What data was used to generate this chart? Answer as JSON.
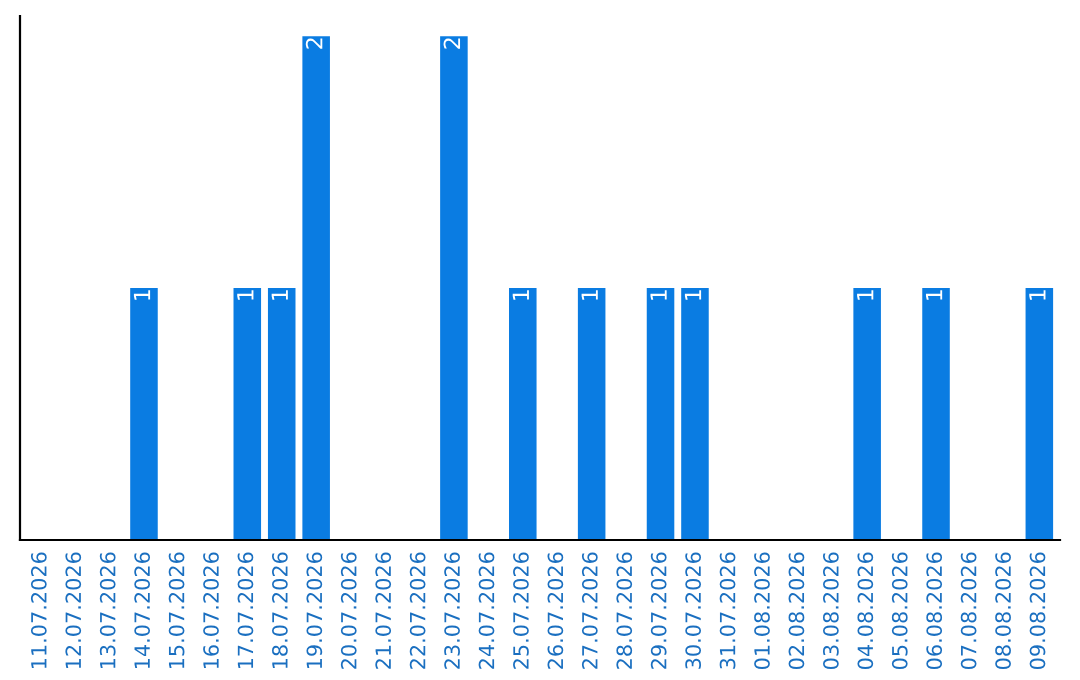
{
  "chart_data": {
    "type": "bar",
    "categories": [
      "11.07.2026",
      "12.07.2026",
      "13.07.2026",
      "14.07.2026",
      "15.07.2026",
      "16.07.2026",
      "17.07.2026",
      "18.07.2026",
      "19.07.2026",
      "20.07.2026",
      "21.07.2026",
      "22.07.2026",
      "23.07.2026",
      "24.07.2026",
      "25.07.2026",
      "26.07.2026",
      "27.07.2026",
      "28.07.2026",
      "29.07.2026",
      "30.07.2026",
      "31.07.2026",
      "01.08.2026",
      "02.08.2026",
      "03.08.2026",
      "04.08.2026",
      "05.08.2026",
      "06.08.2026",
      "07.08.2026",
      "08.08.2026",
      "09.08.2026"
    ],
    "values": [
      0,
      0,
      0,
      1,
      0,
      0,
      1,
      1,
      2,
      0,
      0,
      0,
      2,
      0,
      1,
      0,
      1,
      0,
      1,
      1,
      0,
      0,
      0,
      0,
      1,
      0,
      1,
      0,
      0,
      1
    ],
    "value_labels": [
      null,
      null,
      null,
      "1",
      null,
      null,
      "1",
      "1",
      "2",
      null,
      null,
      null,
      "2",
      null,
      "1",
      null,
      "1",
      null,
      "1",
      "1",
      null,
      null,
      null,
      null,
      "1",
      null,
      "1",
      null,
      null,
      "1"
    ],
    "color": "#0a7ce2",
    "grid": false,
    "legend": false
  }
}
